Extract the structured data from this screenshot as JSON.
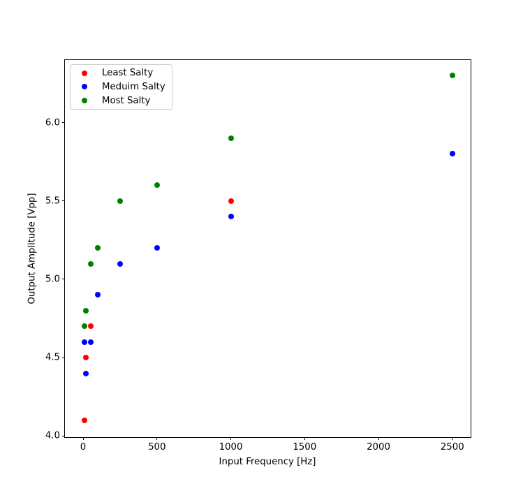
{
  "figure": {
    "background": "#ffffff"
  },
  "chart_data": {
    "type": "scatter",
    "title": "",
    "xlabel": "Input Frequency [Hz]",
    "ylabel": "Output Amplitude [Vpp]",
    "xlim": [
      -123,
      2624
    ],
    "ylim": [
      3.993,
      6.399
    ],
    "grid": false,
    "legend": {
      "position": "upper left",
      "entries": [
        "Least Salty",
        "Meduim Salty",
        "Most Salty"
      ]
    },
    "x_ticks": {
      "values": [
        0,
        500,
        1000,
        1500,
        2000,
        2500
      ],
      "labels": [
        "0",
        "500",
        "1000",
        "1500",
        "2000",
        "2500"
      ]
    },
    "y_ticks": {
      "values": [
        4.0,
        4.5,
        5.0,
        5.5,
        6.0
      ],
      "labels": [
        "4.0",
        "4.5",
        "5.0",
        "5.5",
        "6.0"
      ]
    },
    "series": [
      {
        "name": "Least Salty",
        "color": "#ff0000",
        "marker": "circle",
        "x": [
          10,
          20,
          50,
          1000
        ],
        "y": [
          4.1,
          4.5,
          4.7,
          5.5
        ]
      },
      {
        "name": "Meduim Salty",
        "color": "#0000ff",
        "marker": "circle",
        "x": [
          10,
          20,
          50,
          100,
          250,
          500,
          1000,
          2500
        ],
        "y": [
          4.6,
          4.4,
          4.6,
          4.9,
          5.1,
          5.2,
          5.4,
          5.8
        ]
      },
      {
        "name": "Most Salty",
        "color": "#008000",
        "marker": "circle",
        "x": [
          10,
          20,
          50,
          100,
          250,
          500,
          1000,
          2500
        ],
        "y": [
          4.7,
          4.8,
          5.1,
          5.2,
          5.5,
          5.6,
          5.9,
          6.3
        ]
      }
    ]
  }
}
